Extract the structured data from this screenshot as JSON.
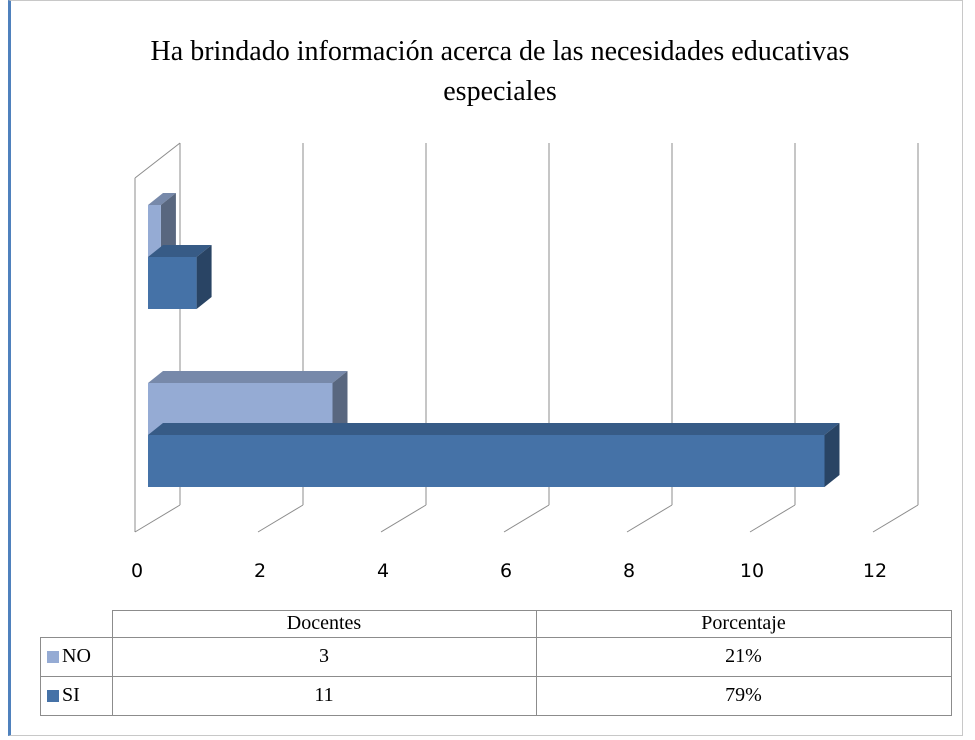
{
  "chart_data": {
    "type": "bar",
    "orientation": "horizontal",
    "three_d": true,
    "title": "Ha brindado información acerca de las necesidades educativas especiales",
    "categories": [
      "Docentes",
      "Porcentaje"
    ],
    "series": [
      {
        "name": "NO",
        "color": "#95abd4",
        "values": [
          3,
          0.21
        ],
        "value_labels": [
          "3",
          "21%"
        ]
      },
      {
        "name": "SI",
        "color": "#4572a7",
        "values": [
          11,
          0.79
        ],
        "value_labels": [
          "11",
          "79%"
        ]
      }
    ],
    "xlim": [
      0,
      12
    ],
    "xticks": [
      0,
      2,
      4,
      6,
      8,
      10,
      12
    ],
    "grid": true,
    "data_table": true
  }
}
